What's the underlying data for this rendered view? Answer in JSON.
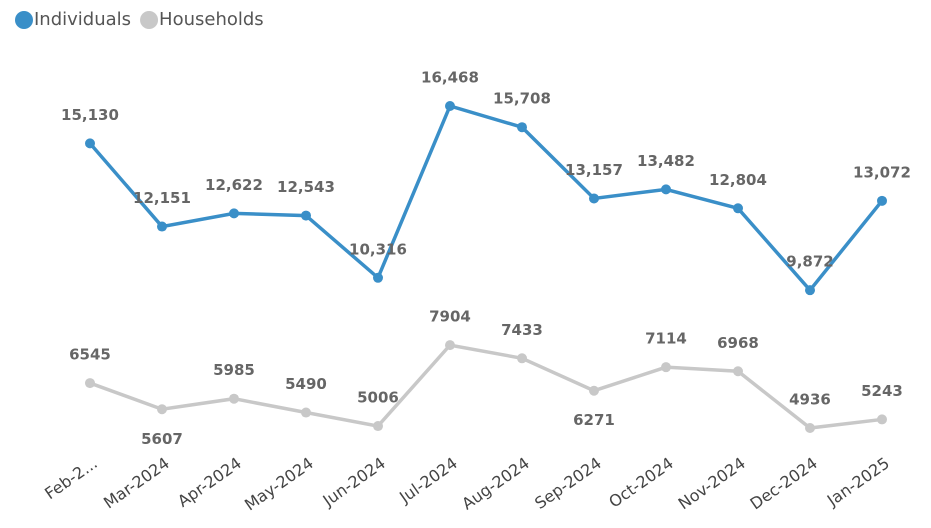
{
  "chart_data": {
    "type": "line",
    "categories": [
      "Feb-2...",
      "Mar-2024",
      "Apr-2024",
      "May-2024",
      "Jun-2024",
      "Jul-2024",
      "Aug-2024",
      "Sep-2024",
      "Oct-2024",
      "Nov-2024",
      "Dec-2024",
      "Jan-2025"
    ],
    "series": [
      {
        "name": "Individuals",
        "color": "#3a8fc8",
        "values": [
          15130,
          12151,
          12622,
          12543,
          10316,
          16468,
          15708,
          13157,
          13482,
          12804,
          9872,
          13072
        ],
        "value_labels": [
          "15,130",
          "12,151",
          "12,622",
          "12,543",
          "10,316",
          "16,468",
          "15,708",
          "13,157",
          "13,482",
          "12,804",
          "9,872",
          "13,072"
        ]
      },
      {
        "name": "Households",
        "color": "#c8c8c8",
        "values": [
          6545,
          5607,
          5985,
          5490,
          5006,
          7904,
          7433,
          6271,
          7114,
          6968,
          4936,
          5243
        ]
      }
    ],
    "legend": "top-left"
  }
}
